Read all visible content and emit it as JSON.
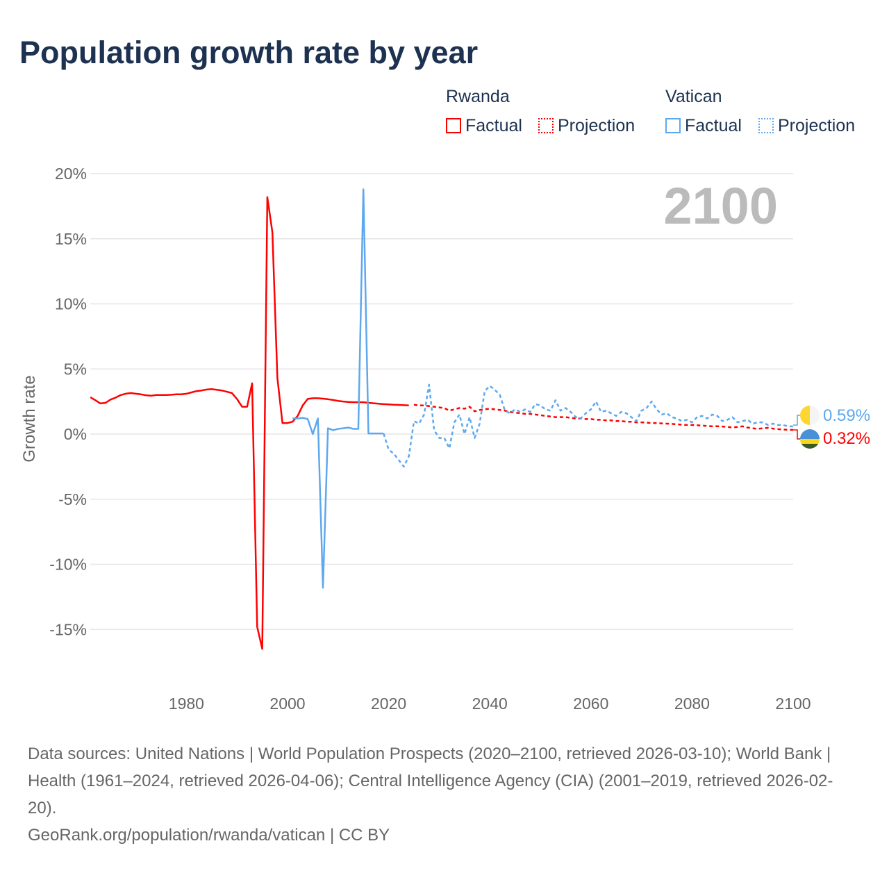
{
  "title": "Population growth rate by year",
  "legend": {
    "groups": [
      {
        "name": "Rwanda",
        "factual": "Factual",
        "projection": "Projection",
        "color": "#ff0000"
      },
      {
        "name": "Vatican",
        "factual": "Factual",
        "projection": "Projection",
        "color": "#5ea8ee"
      }
    ]
  },
  "footer": {
    "sources": "Data sources: United Nations | World Population Prospects (2020–2100, retrieved 2026-03-10); World Bank | Health (1961–2024, retrieved 2026-04-06); Central Intelligence Agency (CIA) (2001–2019, retrieved 2026-02-20).",
    "credit": "GeoRank.org/population/rwanda/vatican | CC BY"
  },
  "chart_data": {
    "type": "line",
    "title": "Population growth rate by year",
    "ylabel": "Growth rate",
    "year_label": "2100",
    "xlim": [
      1961,
      2100
    ],
    "ylim": [
      -17,
      21
    ],
    "xticks": [
      1980,
      2000,
      2020,
      2040,
      2060,
      2080,
      2100
    ],
    "yticks": [
      {
        "v": 20,
        "l": "20%"
      },
      {
        "v": 15,
        "l": "15%"
      },
      {
        "v": 10,
        "l": "10%"
      },
      {
        "v": 5,
        "l": "5%"
      },
      {
        "v": 0,
        "l": "0%"
      },
      {
        "v": -5,
        "l": "-5%"
      },
      {
        "v": -10,
        "l": "-10%"
      },
      {
        "v": -15,
        "l": "-15%"
      }
    ],
    "series": [
      {
        "name": "Rwanda",
        "kind": "factual",
        "start": 1961,
        "color": "#ff0000",
        "values": [
          2.83,
          2.6,
          2.35,
          2.4,
          2.65,
          2.8,
          3.0,
          3.1,
          3.15,
          3.1,
          3.05,
          2.98,
          2.95,
          3.0,
          3.0,
          3.0,
          3.02,
          3.05,
          3.05,
          3.1,
          3.2,
          3.3,
          3.35,
          3.42,
          3.45,
          3.4,
          3.35,
          3.25,
          3.15,
          2.7,
          2.1,
          2.1,
          3.9,
          -14.8,
          -16.5,
          18.2,
          15.5,
          4.3,
          0.85,
          0.85,
          0.95,
          1.4,
          2.2,
          2.7,
          2.75,
          2.75,
          2.72,
          2.68,
          2.62,
          2.55,
          2.5,
          2.47,
          2.45,
          2.45,
          2.45,
          2.4,
          2.37,
          2.33,
          2.3,
          2.28,
          2.25,
          2.24,
          2.22,
          2.2
        ]
      },
      {
        "name": "Rwanda",
        "kind": "projection",
        "start": 2025,
        "color": "#ff0000",
        "values": [
          2.25,
          2.2,
          2.2,
          2.15,
          2.1,
          2.05,
          2.0,
          1.8,
          1.9,
          2.0,
          1.95,
          2.1,
          1.75,
          1.85,
          1.9,
          1.95,
          1.9,
          1.85,
          1.8,
          1.7,
          1.65,
          1.6,
          1.55,
          1.55,
          1.5,
          1.45,
          1.4,
          1.35,
          1.3,
          1.3,
          1.3,
          1.25,
          1.2,
          1.2,
          1.15,
          1.15,
          1.1,
          1.1,
          1.05,
          1.05,
          1.0,
          1.0,
          0.95,
          0.95,
          0.9,
          0.9,
          0.88,
          0.85,
          0.85,
          0.82,
          0.8,
          0.78,
          0.75,
          0.72,
          0.7,
          0.7,
          0.68,
          0.65,
          0.62,
          0.6,
          0.6,
          0.58,
          0.55,
          0.5,
          0.55,
          0.6,
          0.5,
          0.45,
          0.4,
          0.45,
          0.48,
          0.42,
          0.38,
          0.35,
          0.33,
          0.32
        ]
      },
      {
        "name": "Vatican",
        "kind": "factual",
        "start": 2001,
        "color": "#5ea8ee",
        "values": [
          1.2,
          1.2,
          1.25,
          1.15,
          0.0,
          1.2,
          -11.8,
          0.45,
          0.3,
          0.4,
          0.45,
          0.5,
          0.4,
          0.4,
          18.8,
          0.05,
          0.05,
          0.05,
          0.05
        ]
      },
      {
        "name": "Vatican",
        "kind": "projection",
        "start": 2019,
        "color": "#5ea8ee",
        "values": [
          0.05,
          -1.2,
          -1.5,
          -2.0,
          -2.5,
          -1.7,
          1.0,
          0.8,
          1.5,
          3.8,
          0.3,
          -0.3,
          -0.3,
          -1.1,
          0.9,
          1.5,
          0.0,
          1.3,
          -0.3,
          0.8,
          3.3,
          3.7,
          3.4,
          3.0,
          1.8,
          1.6,
          1.9,
          1.7,
          1.9,
          1.7,
          2.3,
          2.2,
          1.9,
          1.8,
          2.6,
          1.8,
          2.0,
          1.7,
          1.3,
          1.2,
          1.6,
          1.9,
          2.5,
          1.7,
          1.8,
          1.6,
          1.4,
          1.7,
          1.6,
          1.3,
          1.0,
          1.8,
          2.0,
          2.5,
          1.9,
          1.5,
          1.6,
          1.3,
          1.2,
          1.0,
          1.1,
          0.9,
          1.3,
          1.4,
          1.2,
          1.5,
          1.4,
          1.0,
          1.1,
          1.3,
          0.9,
          1.0,
          1.1,
          0.8,
          0.9,
          0.9,
          0.7,
          0.8,
          0.7,
          0.7,
          0.6,
          0.59
        ]
      }
    ],
    "end_labels": [
      {
        "name": "Vatican",
        "text": "0.59%",
        "color": "#5ea8ee"
      },
      {
        "name": "Rwanda",
        "text": "0.32%",
        "color": "#ff0000"
      }
    ]
  }
}
